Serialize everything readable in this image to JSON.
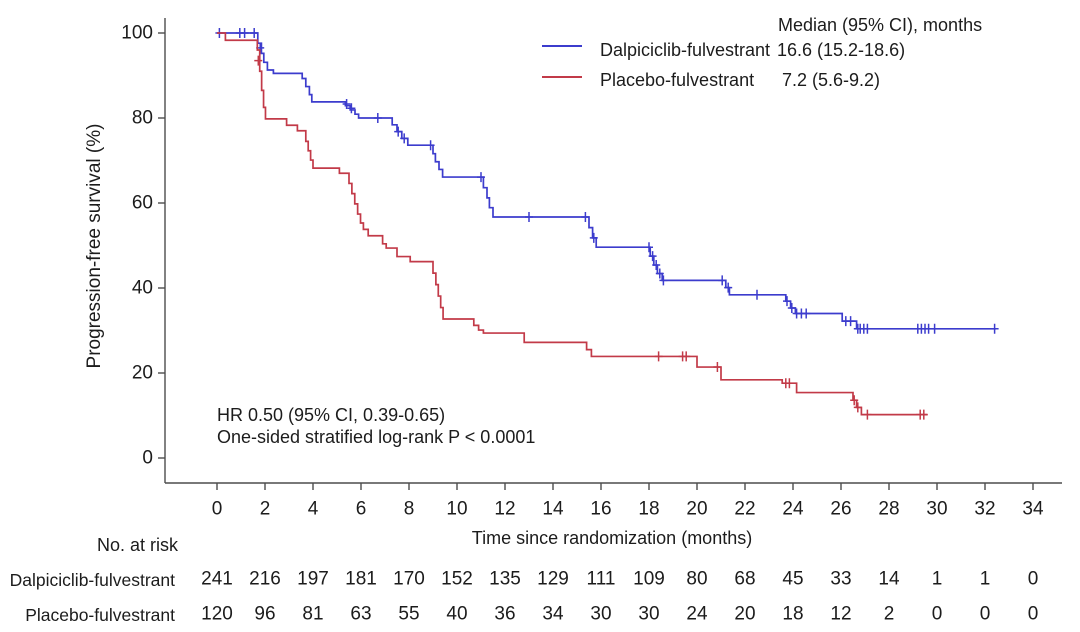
{
  "chart_data": {
    "type": "line",
    "subtype": "kaplan_meier_step",
    "title": "",
    "xlabel": "Time since randomization (months)",
    "ylabel": "Progression-free survival (%)",
    "xlim": [
      0,
      34
    ],
    "ylim": [
      0,
      100
    ],
    "x_ticks": [
      0,
      2,
      4,
      6,
      8,
      10,
      12,
      14,
      16,
      18,
      20,
      22,
      24,
      26,
      28,
      30,
      32,
      34
    ],
    "y_ticks": [
      0,
      20,
      40,
      60,
      80,
      100
    ],
    "grid": false,
    "legend_position": "top-right",
    "legend_header": "Median (95% CI), months",
    "annotations": [
      "HR 0.50 (95% CI, 0.39-0.65)",
      "One-sided stratified log-rank P < 0.0001"
    ],
    "series": [
      {
        "id": "dalpiciclib",
        "name": "Dalpiciclib-fulvestrant",
        "median_text": "16.6 (15.2-18.6)",
        "color": "#3c3ccd",
        "steps": [
          [
            0,
            100
          ],
          [
            1.7,
            97.6
          ],
          [
            1.85,
            95.2
          ],
          [
            1.95,
            93.1
          ],
          [
            2.1,
            91.3
          ],
          [
            2.35,
            90.5
          ],
          [
            3.55,
            89.3
          ],
          [
            3.7,
            87.4
          ],
          [
            3.85,
            85.5
          ],
          [
            3.95,
            83.8
          ],
          [
            5.35,
            82.9
          ],
          [
            5.55,
            81.9
          ],
          [
            5.75,
            80.9
          ],
          [
            5.9,
            80.0
          ],
          [
            7.3,
            78.4
          ],
          [
            7.5,
            76.8
          ],
          [
            7.7,
            75.2
          ],
          [
            7.95,
            73.6
          ],
          [
            9.0,
            71.6
          ],
          [
            9.1,
            69.7
          ],
          [
            9.25,
            67.9
          ],
          [
            9.4,
            66.1
          ],
          [
            11.1,
            63.6
          ],
          [
            11.25,
            61.2
          ],
          [
            11.35,
            58.9
          ],
          [
            11.5,
            56.7
          ],
          [
            15.5,
            54.2
          ],
          [
            15.65,
            51.8
          ],
          [
            15.8,
            49.6
          ],
          [
            18.05,
            47.5
          ],
          [
            18.2,
            45.4
          ],
          [
            18.35,
            43.4
          ],
          [
            18.55,
            41.8
          ],
          [
            21.2,
            40.1
          ],
          [
            21.35,
            38.4
          ],
          [
            23.7,
            36.9
          ],
          [
            23.9,
            35.3
          ],
          [
            24.1,
            34.0
          ],
          [
            26.05,
            32.2
          ],
          [
            26.65,
            30.4
          ],
          [
            32.45,
            30.4
          ]
        ],
        "censors": [
          [
            0.1,
            100
          ],
          [
            0.95,
            100
          ],
          [
            1.15,
            100
          ],
          [
            1.55,
            100
          ],
          [
            1.8,
            96.5
          ],
          [
            5.4,
            83.3
          ],
          [
            5.6,
            82.3
          ],
          [
            6.7,
            80.0
          ],
          [
            7.55,
            76.8
          ],
          [
            7.8,
            75.2
          ],
          [
            8.9,
            73.6
          ],
          [
            11.0,
            66.1
          ],
          [
            13.0,
            56.7
          ],
          [
            15.35,
            56.7
          ],
          [
            15.7,
            51.8
          ],
          [
            18.0,
            49.6
          ],
          [
            18.15,
            47.5
          ],
          [
            18.3,
            45.4
          ],
          [
            18.45,
            43.4
          ],
          [
            18.6,
            41.8
          ],
          [
            21.05,
            41.8
          ],
          [
            21.3,
            40.1
          ],
          [
            22.5,
            38.4
          ],
          [
            23.75,
            36.9
          ],
          [
            23.95,
            35.3
          ],
          [
            24.15,
            34.0
          ],
          [
            24.35,
            34.0
          ],
          [
            24.55,
            34.0
          ],
          [
            26.2,
            32.2
          ],
          [
            26.4,
            32.2
          ],
          [
            26.7,
            30.4
          ],
          [
            26.8,
            30.4
          ],
          [
            26.95,
            30.4
          ],
          [
            27.1,
            30.4
          ],
          [
            29.2,
            30.4
          ],
          [
            29.35,
            30.4
          ],
          [
            29.5,
            30.4
          ],
          [
            29.65,
            30.4
          ],
          [
            29.9,
            30.4
          ],
          [
            32.4,
            30.4
          ]
        ]
      },
      {
        "id": "placebo",
        "name": "Placebo-fulvestrant",
        "median_text": "7.2 (5.6-9.2)",
        "color": "#c23a48",
        "steps": [
          [
            0,
            100
          ],
          [
            0.35,
            98.3
          ],
          [
            1.68,
            96.0
          ],
          [
            1.78,
            91.0
          ],
          [
            1.86,
            86.5
          ],
          [
            1.94,
            82.5
          ],
          [
            2.02,
            79.8
          ],
          [
            2.9,
            78.3
          ],
          [
            3.35,
            77.0
          ],
          [
            3.7,
            74.5
          ],
          [
            3.8,
            72.3
          ],
          [
            3.9,
            70.1
          ],
          [
            4.0,
            68.2
          ],
          [
            5.1,
            67.0
          ],
          [
            5.5,
            64.6
          ],
          [
            5.62,
            62.2
          ],
          [
            5.74,
            59.8
          ],
          [
            5.86,
            57.4
          ],
          [
            5.98,
            55.3
          ],
          [
            6.1,
            53.8
          ],
          [
            6.3,
            52.3
          ],
          [
            6.9,
            50.4
          ],
          [
            7.05,
            49.4
          ],
          [
            7.5,
            47.4
          ],
          [
            8.05,
            46.2
          ],
          [
            9.0,
            43.5
          ],
          [
            9.12,
            40.8
          ],
          [
            9.22,
            38.1
          ],
          [
            9.32,
            35.4
          ],
          [
            9.42,
            32.7
          ],
          [
            10.7,
            31.2
          ],
          [
            10.9,
            30.1
          ],
          [
            11.1,
            29.4
          ],
          [
            12.8,
            27.2
          ],
          [
            15.4,
            25.5
          ],
          [
            15.6,
            23.9
          ],
          [
            20.0,
            21.4
          ],
          [
            21.0,
            18.4
          ],
          [
            23.55,
            17.6
          ],
          [
            24.15,
            15.4
          ],
          [
            26.5,
            13.6
          ],
          [
            26.65,
            11.9
          ],
          [
            26.85,
            10.2
          ],
          [
            29.6,
            10.2
          ]
        ],
        "censors": [
          [
            1.72,
            93.5
          ],
          [
            18.4,
            23.9
          ],
          [
            19.4,
            23.9
          ],
          [
            19.55,
            23.9
          ],
          [
            20.85,
            21.4
          ],
          [
            23.7,
            17.6
          ],
          [
            23.85,
            17.6
          ],
          [
            26.55,
            13.6
          ],
          [
            26.7,
            11.9
          ],
          [
            27.1,
            10.2
          ],
          [
            29.3,
            10.2
          ],
          [
            29.45,
            10.2
          ]
        ]
      }
    ],
    "risk_table": {
      "title": "No. at risk",
      "time_points": [
        0,
        2,
        4,
        6,
        8,
        10,
        12,
        14,
        16,
        18,
        20,
        22,
        24,
        26,
        28,
        30,
        32,
        34
      ],
      "rows": [
        {
          "label": "Dalpiciclib-fulvestrant",
          "counts": [
            241,
            216,
            197,
            181,
            170,
            152,
            135,
            129,
            111,
            109,
            80,
            68,
            45,
            33,
            14,
            1,
            1,
            0
          ]
        },
        {
          "label": "Placebo-fulvestrant",
          "counts": [
            120,
            96,
            81,
            63,
            55,
            40,
            36,
            34,
            30,
            30,
            24,
            20,
            18,
            12,
            2,
            0,
            0,
            0
          ]
        }
      ]
    }
  }
}
